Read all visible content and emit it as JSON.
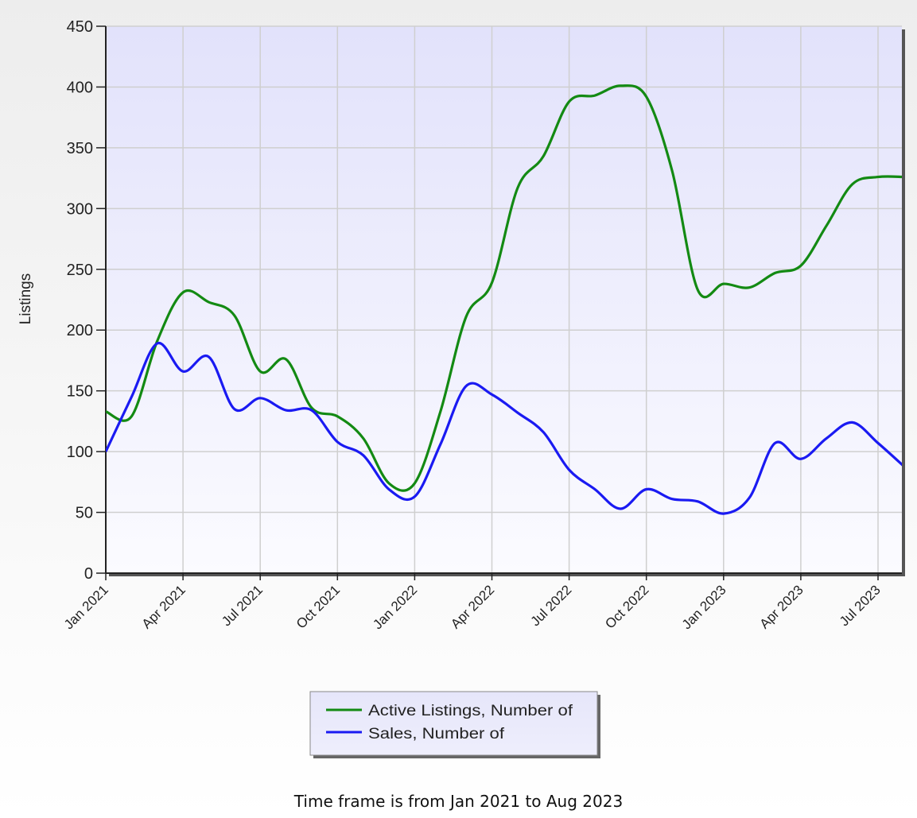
{
  "chart_data": {
    "type": "line",
    "ylabel": "Listings",
    "ylim": [
      0,
      450
    ],
    "y_ticks": [
      0,
      50,
      100,
      150,
      200,
      250,
      300,
      350,
      400,
      450
    ],
    "x_ticks": [
      "Jan 2021",
      "Apr 2021",
      "Jul 2021",
      "Oct 2021",
      "Jan 2022",
      "Apr 2022",
      "Jul 2022",
      "Oct 2022",
      "Jan 2023",
      "Apr 2023",
      "Jul 2023"
    ],
    "x": [
      "Jan 2021",
      "Feb 2021",
      "Mar 2021",
      "Apr 2021",
      "May 2021",
      "Jun 2021",
      "Jul 2021",
      "Aug 2021",
      "Sep 2021",
      "Oct 2021",
      "Nov 2021",
      "Dec 2021",
      "Jan 2022",
      "Feb 2022",
      "Mar 2022",
      "Apr 2022",
      "May 2022",
      "Jun 2022",
      "Jul 2022",
      "Aug 2022",
      "Sep 2022",
      "Oct 2022",
      "Nov 2022",
      "Dec 2022",
      "Jan 2023",
      "Feb 2023",
      "Mar 2023",
      "Apr 2023",
      "May 2023",
      "Jun 2023",
      "Jul 2023",
      "Aug 2023"
    ],
    "series": [
      {
        "name": "Active Listings, Number of",
        "color": "#138a13",
        "values": [
          133,
          129,
          191,
          231,
          223,
          212,
          166,
          176,
          136,
          129,
          111,
          74,
          74,
          133,
          211,
          239,
          317,
          343,
          388,
          393,
          401,
          392,
          331,
          233,
          238,
          235,
          247,
          253,
          286,
          320,
          326,
          326
        ]
      },
      {
        "name": "Sales, Number of",
        "color": "#1a1af2",
        "values": [
          100,
          145,
          189,
          166,
          178,
          135,
          144,
          134,
          134,
          108,
          97,
          69,
          63,
          106,
          154,
          147,
          132,
          116,
          85,
          69,
          53,
          69,
          61,
          59,
          49,
          62,
          107,
          94,
          111,
          124,
          107,
          88
        ]
      }
    ],
    "grid": true,
    "legend": "bottom-center"
  },
  "footer": "Time frame is from Jan 2021 to Aug 2023"
}
